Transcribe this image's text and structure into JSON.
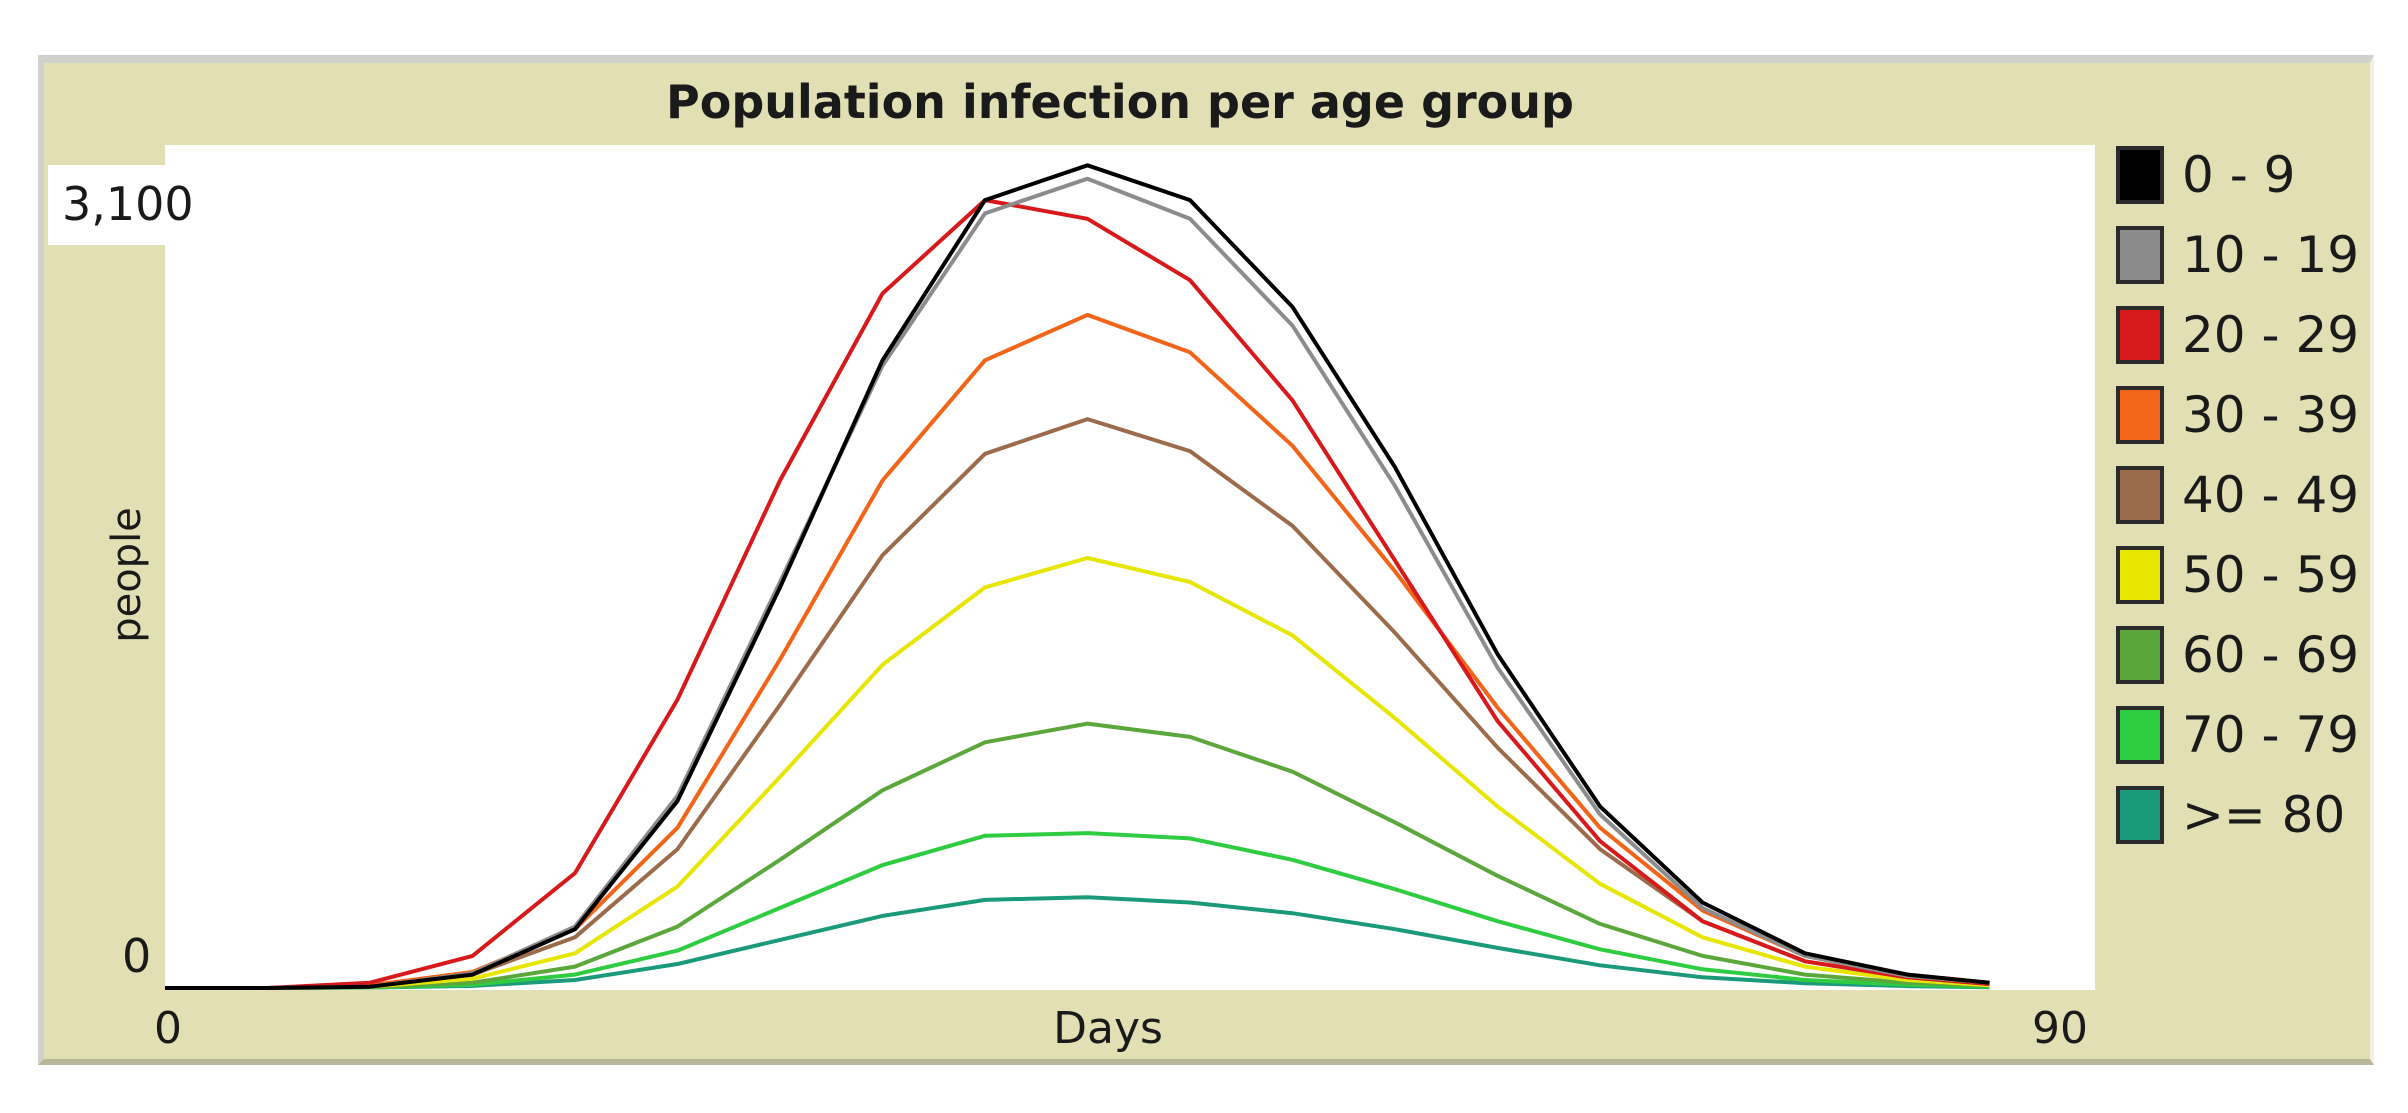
{
  "chart_data": {
    "type": "line",
    "title": "Population infection per age group",
    "xlabel": "Days",
    "ylabel": "people",
    "xlim": [
      0,
      90
    ],
    "ylim": [
      0,
      3100
    ],
    "x_ticks": [
      "0",
      "90"
    ],
    "y_ticks": [
      "0",
      "3,100"
    ],
    "grid": false,
    "legend_position": "right",
    "x": [
      0,
      5,
      10,
      15,
      20,
      25,
      30,
      35,
      40,
      45,
      50,
      55,
      60,
      65,
      70,
      75,
      80,
      85,
      89
    ],
    "series": [
      {
        "name": "0 - 9",
        "color": "#000000",
        "values": [
          0,
          0,
          5,
          50,
          220,
          700,
          1500,
          2350,
          2950,
          3080,
          2950,
          2550,
          1950,
          1250,
          680,
          320,
          130,
          50,
          20
        ]
      },
      {
        "name": "10 - 19",
        "color": "#8c8c8c",
        "values": [
          0,
          0,
          5,
          55,
          230,
          720,
          1520,
          2330,
          2900,
          3030,
          2880,
          2480,
          1880,
          1200,
          650,
          300,
          120,
          45,
          20
        ]
      },
      {
        "name": "20 - 29",
        "color": "#d7191c",
        "values": [
          0,
          0,
          20,
          120,
          430,
          1080,
          1900,
          2600,
          2950,
          2880,
          2650,
          2200,
          1600,
          1000,
          550,
          250,
          100,
          40,
          15
        ]
      },
      {
        "name": "30 - 39",
        "color": "#f26418",
        "values": [
          0,
          0,
          10,
          60,
          220,
          600,
          1230,
          1900,
          2350,
          2520,
          2380,
          2030,
          1560,
          1050,
          600,
          290,
          120,
          50,
          20
        ]
      },
      {
        "name": "40 - 49",
        "color": "#9c6b4b",
        "values": [
          0,
          0,
          8,
          50,
          190,
          520,
          1060,
          1620,
          2000,
          2130,
          2010,
          1730,
          1330,
          900,
          520,
          250,
          100,
          40,
          15
        ]
      },
      {
        "name": "50 - 59",
        "color": "#e6e600",
        "values": [
          0,
          0,
          5,
          35,
          130,
          380,
          790,
          1210,
          1500,
          1610,
          1520,
          1320,
          1010,
          680,
          390,
          190,
          80,
          30,
          10
        ]
      },
      {
        "name": "60 - 69",
        "color": "#5ba73c",
        "values": [
          0,
          0,
          3,
          20,
          80,
          230,
          480,
          740,
          920,
          990,
          940,
          810,
          620,
          420,
          240,
          120,
          50,
          20,
          8
        ]
      },
      {
        "name": "70 - 79",
        "color": "#2ecc40",
        "values": [
          0,
          0,
          2,
          12,
          50,
          140,
          300,
          460,
          570,
          580,
          560,
          480,
          370,
          250,
          145,
          70,
          30,
          12,
          5
        ]
      },
      {
        "name": ">= 80",
        "color": "#1a9a7a",
        "values": [
          0,
          0,
          2,
          8,
          30,
          90,
          180,
          270,
          330,
          340,
          320,
          280,
          220,
          150,
          85,
          40,
          18,
          7,
          3
        ]
      }
    ]
  }
}
